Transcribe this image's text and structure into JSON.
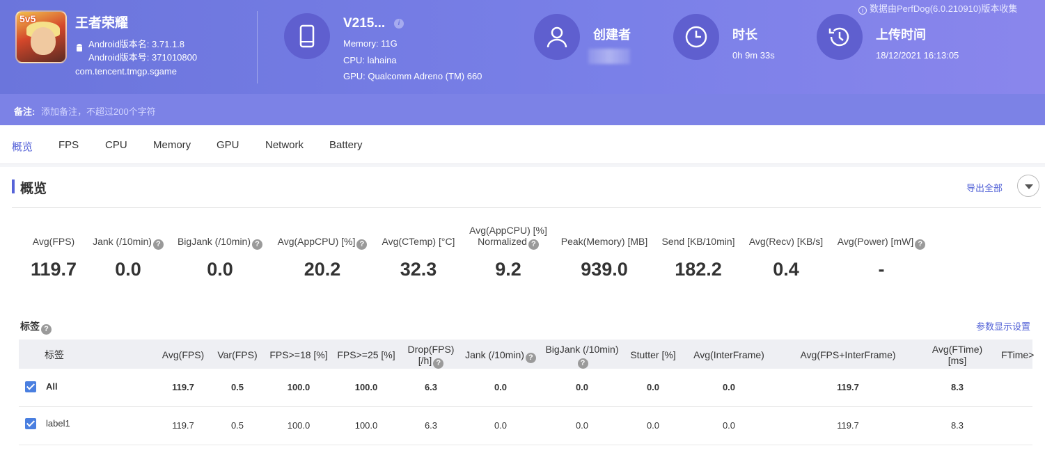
{
  "header": {
    "app_name": "王者荣耀",
    "android_version_name": "Android版本名: 3.71.1.8",
    "android_version_code": "Android版本号: 371010800",
    "package": "com.tencent.tmgp.sgame",
    "device_name": "V215...",
    "memory": "Memory: 11G",
    "cpu": "CPU: lahaina",
    "gpu": "GPU: Qualcomm Adreno (TM) 660",
    "creator_label": "创建者",
    "duration_label": "时长",
    "duration_value": "0h 9m 33s",
    "upload_label": "上传时间",
    "upload_value": "18/12/2021 16:13:05",
    "collect_note": "数据由PerfDog(6.0.210910)版本收集"
  },
  "note": {
    "label": "备注:",
    "placeholder": "添加备注，不超过200个字符"
  },
  "tabs": [
    "概览",
    "FPS",
    "CPU",
    "Memory",
    "GPU",
    "Network",
    "Battery"
  ],
  "overview": {
    "title": "概览",
    "export_label": "导出全部",
    "metrics": [
      {
        "label": "Avg(FPS)",
        "value": "119.7"
      },
      {
        "label": "Jank (/10min)",
        "value": "0.0"
      },
      {
        "label": "BigJank (/10min)",
        "value": "0.0"
      },
      {
        "label": "Avg(AppCPU) [%]",
        "value": "20.2"
      },
      {
        "label": "Avg(CTemp) [°C]",
        "value": "32.3"
      },
      {
        "label": "Avg(AppCPU) [%]",
        "label2": "Normalized",
        "value": "9.2"
      },
      {
        "label": "Peak(Memory) [MB]",
        "value": "939.0"
      },
      {
        "label": "Send [KB/10min]",
        "value": "182.2"
      },
      {
        "label": "Avg(Recv) [KB/s]",
        "value": "0.4"
      },
      {
        "label": "Avg(Power) [mW]",
        "value": "-"
      }
    ]
  },
  "tags": {
    "title": "标签",
    "param_link": "参数显示设置",
    "columns": {
      "tag": "标签",
      "avg_fps": "Avg(FPS)",
      "var_fps": "Var(FPS)",
      "fps18": "FPS>=18 [%]",
      "fps25": "FPS>=25 [%]",
      "drop1": "Drop(FPS)",
      "drop2": "[/h]",
      "jank": "Jank (/10min)",
      "bigjank": "BigJank (/10min)",
      "stutter": "Stutter [%]",
      "interframe": "Avg(InterFrame)",
      "fps_inter": "Avg(FPS+InterFrame)",
      "ftime1": "Avg(FTime)",
      "ftime2": "[ms]",
      "ftime_more": "FTime>"
    },
    "rows": [
      {
        "name": "All",
        "avg_fps": "119.7",
        "var_fps": "0.5",
        "fps18": "100.0",
        "fps25": "100.0",
        "drop": "6.3",
        "jank": "0.0",
        "bigjank": "0.0",
        "stutter": "0.0",
        "interframe": "0.0",
        "fps_inter": "119.7",
        "ftime": "8.3"
      },
      {
        "name": "label1",
        "avg_fps": "119.7",
        "var_fps": "0.5",
        "fps18": "100.0",
        "fps25": "100.0",
        "drop": "6.3",
        "jank": "0.0",
        "bigjank": "0.0",
        "stutter": "0.0",
        "interframe": "0.0",
        "fps_inter": "119.7",
        "ftime": "8.3"
      }
    ]
  },
  "colors": {
    "accent": "#5663d8",
    "header": "#6b75dc",
    "checkbox": "#4a7fe0"
  }
}
